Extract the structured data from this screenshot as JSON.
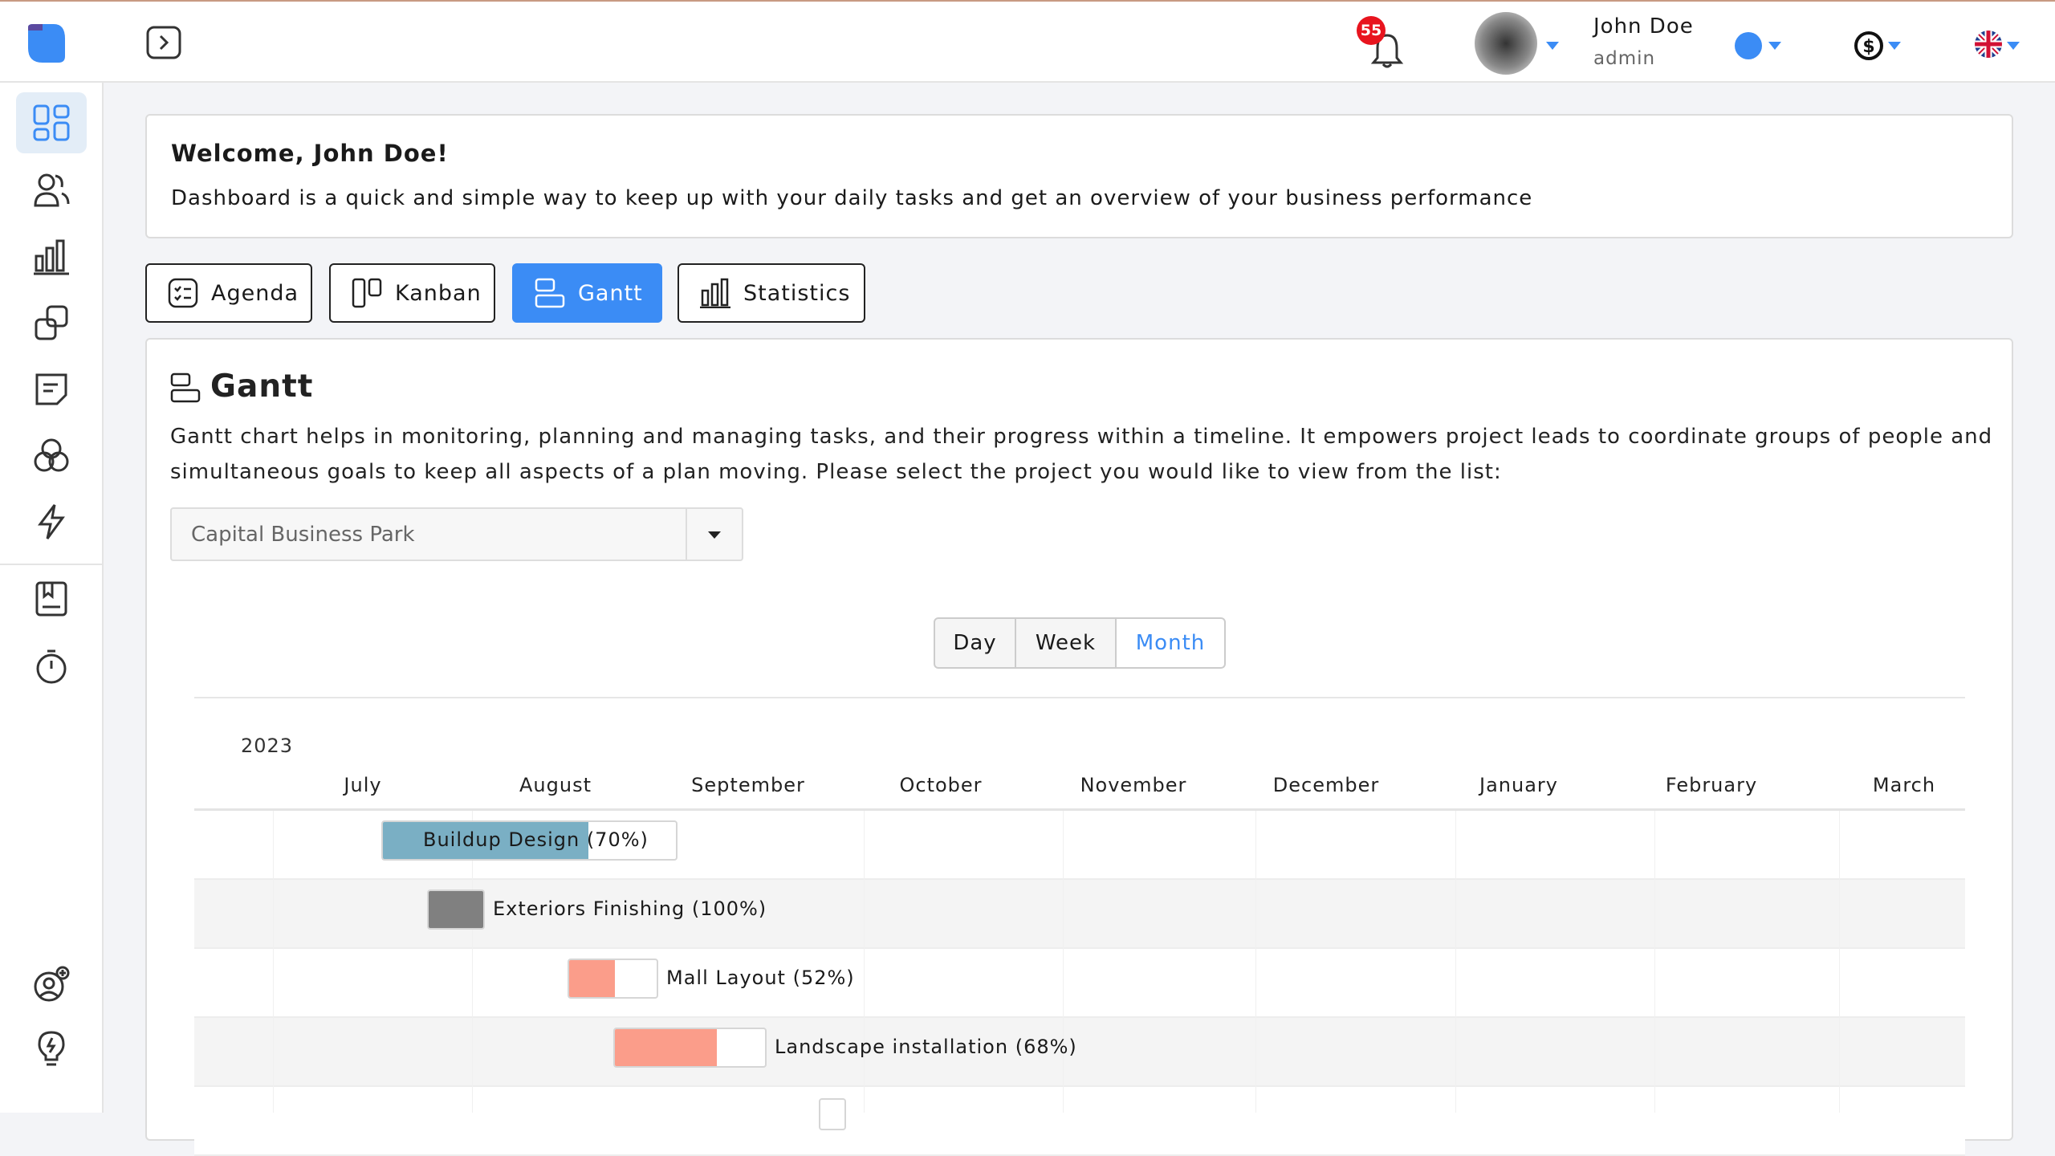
{
  "header": {
    "notifications": "55",
    "user_name": "John Doe",
    "user_role": "admin"
  },
  "welcome": {
    "title": "Welcome, John Doe!",
    "text": "Dashboard is a quick and simple way to keep up with your daily tasks and get an overview of your business performance"
  },
  "tabs": [
    {
      "label": "Agenda",
      "icon": "checklist-icon"
    },
    {
      "label": "Kanban",
      "icon": "kanban-icon"
    },
    {
      "label": "Gantt",
      "icon": "gantt-icon",
      "active": true
    },
    {
      "label": "Statistics",
      "icon": "bar-chart-icon"
    }
  ],
  "gantt": {
    "title": "Gantt",
    "description_1": "Gantt chart helps in monitoring, planning and managing tasks, and their progress within a timeline. It empowers project leads to coordinate groups of people and",
    "description_2": "simultaneous goals to keep all aspects of a plan moving. Please select the project you would like to view from the list:",
    "project": "Capital Business Park",
    "views": [
      "Day",
      "Week",
      "Month"
    ],
    "active_view": "Month"
  },
  "chart_data": {
    "type": "gantt",
    "year": "2023",
    "months": [
      "July",
      "August",
      "September",
      "October",
      "November",
      "December",
      "January",
      "February",
      "March"
    ],
    "tasks": [
      {
        "label": "Buildup Design (70%)",
        "progress": 70,
        "color": "#7aafc4"
      },
      {
        "label": "Exteriors Finishing (100%)",
        "progress": 100,
        "color": "#808080"
      },
      {
        "label": "Mall Layout (52%)",
        "progress": 52,
        "color": "#fb9d8a"
      },
      {
        "label": "Landscape installation (68%)",
        "progress": 68,
        "color": "#fb9d8a"
      }
    ]
  },
  "colors": {
    "accent": "#3b8cf5",
    "badge": "#e8141e"
  }
}
